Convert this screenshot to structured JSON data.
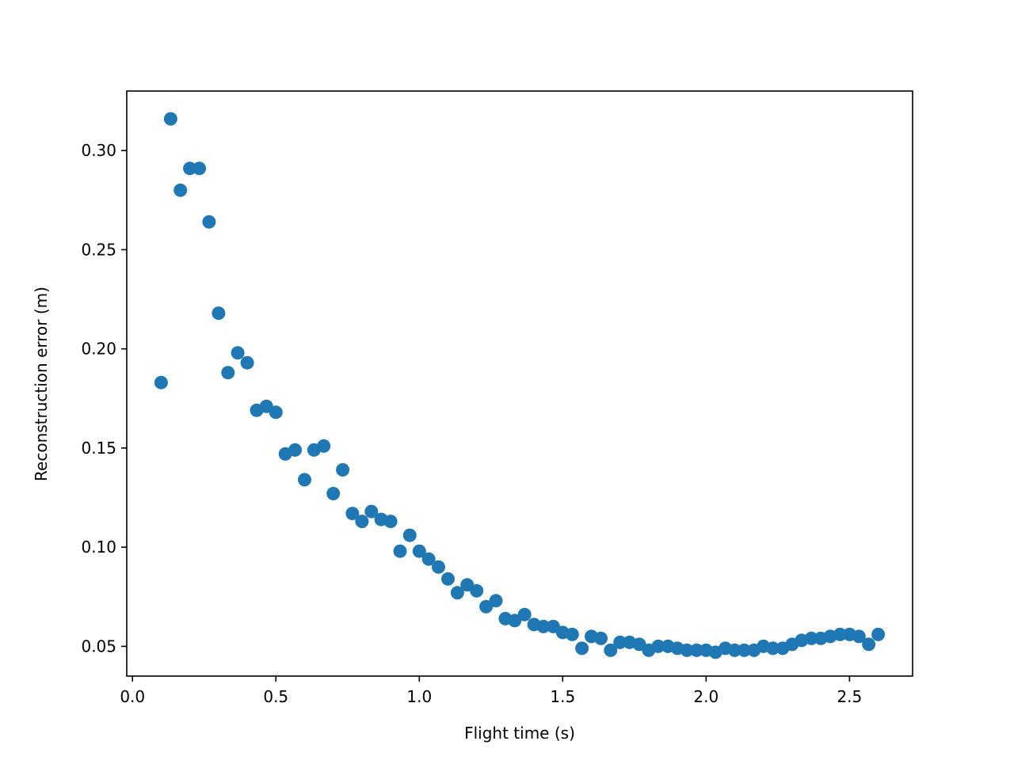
{
  "chart_data": {
    "type": "scatter",
    "title": "",
    "xlabel": "Flight time (s)",
    "ylabel": "Reconstruction error (m)",
    "xlim": [
      -0.02,
      2.72
    ],
    "ylim": [
      0.035,
      0.33
    ],
    "xticks": [
      0.0,
      0.5,
      1.0,
      1.5,
      2.0,
      2.5
    ],
    "xtick_labels": [
      "0.0",
      "0.5",
      "1.0",
      "1.5",
      "2.0",
      "2.5"
    ],
    "yticks": [
      0.05,
      0.1,
      0.15,
      0.2,
      0.25,
      0.3
    ],
    "ytick_labels": [
      "0.05",
      "0.10",
      "0.15",
      "0.20",
      "0.25",
      "0.30"
    ],
    "grid": false,
    "marker_color": "#1f77b4",
    "series": [
      {
        "x": [
          0.1,
          0.133,
          0.167,
          0.2,
          0.233,
          0.267,
          0.3,
          0.333,
          0.367,
          0.4,
          0.433,
          0.467,
          0.5,
          0.533,
          0.567,
          0.6,
          0.633,
          0.667,
          0.7,
          0.733,
          0.767,
          0.8,
          0.833,
          0.867,
          0.9,
          0.933,
          0.967,
          1.0,
          1.033,
          1.067,
          1.1,
          1.133,
          1.167,
          1.2,
          1.233,
          1.267,
          1.3,
          1.333,
          1.367,
          1.4,
          1.433,
          1.467,
          1.5,
          1.533,
          1.567,
          1.6,
          1.633,
          1.667,
          1.7,
          1.733,
          1.767,
          1.8,
          1.833,
          1.867,
          1.9,
          1.933,
          1.967,
          2.0,
          2.033,
          2.067,
          2.1,
          2.133,
          2.167,
          2.2,
          2.233,
          2.267,
          2.3,
          2.333,
          2.367,
          2.4,
          2.433,
          2.467,
          2.5,
          2.533,
          2.567,
          2.6
        ],
        "y": [
          0.183,
          0.316,
          0.28,
          0.291,
          0.291,
          0.264,
          0.218,
          0.188,
          0.198,
          0.193,
          0.169,
          0.171,
          0.168,
          0.147,
          0.149,
          0.134,
          0.149,
          0.151,
          0.127,
          0.139,
          0.117,
          0.113,
          0.118,
          0.114,
          0.113,
          0.098,
          0.106,
          0.098,
          0.094,
          0.09,
          0.084,
          0.077,
          0.081,
          0.078,
          0.07,
          0.073,
          0.064,
          0.063,
          0.066,
          0.061,
          0.06,
          0.06,
          0.057,
          0.056,
          0.049,
          0.055,
          0.054,
          0.048,
          0.052,
          0.052,
          0.051,
          0.048,
          0.05,
          0.05,
          0.049,
          0.048,
          0.048,
          0.048,
          0.047,
          0.049,
          0.048,
          0.048,
          0.048,
          0.05,
          0.049,
          0.049,
          0.051,
          0.053,
          0.054,
          0.054,
          0.055,
          0.056,
          0.056,
          0.055,
          0.051,
          0.056
        ]
      }
    ]
  }
}
